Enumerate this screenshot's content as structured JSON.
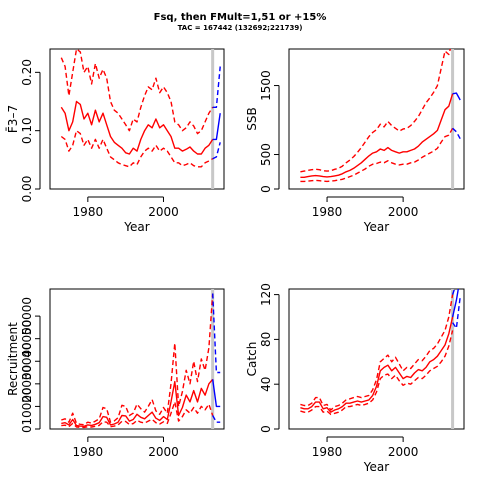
{
  "figure": {
    "title": "Fsq, then FMult=1,51 or +15%",
    "subtitle": "TAC = 167442 (132692;221739)"
  },
  "colors": {
    "historical": "#ff0000",
    "projection": "#0000ff",
    "terminal_line": "#c8c8c8"
  },
  "chart_data": [
    {
      "id": "fbar",
      "type": "line",
      "xlabel": "Year",
      "ylabel": "F̄3–7",
      "xlim": [
        1970,
        2016
      ],
      "ylim": [
        0.0,
        0.24
      ],
      "xticks": [
        1980,
        2000
      ],
      "yticks": [
        "0.00",
        "0.10",
        "0.20"
      ],
      "terminal_year": 2013,
      "series": {
        "hist_x": [
          1973,
          1974,
          1975,
          1976,
          1977,
          1978,
          1979,
          1980,
          1981,
          1982,
          1983,
          1984,
          1985,
          1986,
          1987,
          1988,
          1989,
          1990,
          1991,
          1992,
          1993,
          1994,
          1995,
          1996,
          1997,
          1998,
          1999,
          2000,
          2001,
          2002,
          2003,
          2004,
          2005,
          2006,
          2007,
          2008,
          2009,
          2010,
          2011,
          2012,
          2013
        ],
        "median": [
          0.14,
          0.13,
          0.1,
          0.115,
          0.15,
          0.145,
          0.12,
          0.13,
          0.11,
          0.135,
          0.115,
          0.13,
          0.11,
          0.09,
          0.08,
          0.075,
          0.07,
          0.062,
          0.06,
          0.07,
          0.065,
          0.085,
          0.1,
          0.11,
          0.105,
          0.12,
          0.105,
          0.11,
          0.1,
          0.09,
          0.07,
          0.07,
          0.065,
          0.068,
          0.072,
          0.065,
          0.06,
          0.06,
          0.07,
          0.075,
          0.085
        ],
        "upper": [
          0.225,
          0.21,
          0.16,
          0.2,
          0.24,
          0.235,
          0.2,
          0.21,
          0.18,
          0.215,
          0.19,
          0.205,
          0.19,
          0.15,
          0.135,
          0.13,
          0.12,
          0.11,
          0.1,
          0.12,
          0.115,
          0.14,
          0.16,
          0.175,
          0.17,
          0.19,
          0.165,
          0.175,
          0.165,
          0.15,
          0.115,
          0.11,
          0.1,
          0.105,
          0.115,
          0.108,
          0.095,
          0.1,
          0.115,
          0.13,
          0.14
        ],
        "lower": [
          0.09,
          0.085,
          0.065,
          0.075,
          0.1,
          0.095,
          0.075,
          0.085,
          0.07,
          0.085,
          0.07,
          0.085,
          0.07,
          0.055,
          0.05,
          0.045,
          0.042,
          0.04,
          0.038,
          0.045,
          0.042,
          0.055,
          0.065,
          0.07,
          0.065,
          0.075,
          0.065,
          0.07,
          0.065,
          0.055,
          0.045,
          0.045,
          0.04,
          0.042,
          0.045,
          0.04,
          0.038,
          0.038,
          0.045,
          0.048,
          0.052
        ],
        "proj_x": [
          2013,
          2014,
          2015
        ],
        "proj_median": [
          0.085,
          0.085,
          0.13
        ],
        "proj_upper": [
          0.14,
          0.14,
          0.21
        ],
        "proj_lower": [
          0.052,
          0.055,
          0.08
        ]
      }
    },
    {
      "id": "ssb",
      "type": "line",
      "xlabel": "Year",
      "ylabel": "SSB",
      "xlim": [
        1970,
        2016
      ],
      "ylim": [
        0,
        2030
      ],
      "xticks": [
        1980,
        2000
      ],
      "yticks": [
        "0",
        "500",
        "1500"
      ],
      "terminal_year": 2013,
      "series": {
        "hist_x": [
          1973,
          1974,
          1975,
          1976,
          1977,
          1978,
          1979,
          1980,
          1981,
          1982,
          1983,
          1984,
          1985,
          1986,
          1987,
          1988,
          1989,
          1990,
          1991,
          1992,
          1993,
          1994,
          1995,
          1996,
          1997,
          1998,
          1999,
          2000,
          2001,
          2002,
          2003,
          2004,
          2005,
          2006,
          2007,
          2008,
          2009,
          2010,
          2011,
          2012,
          2013
        ],
        "median": [
          170,
          170,
          180,
          190,
          195,
          190,
          180,
          175,
          180,
          190,
          200,
          220,
          250,
          270,
          300,
          340,
          380,
          430,
          480,
          520,
          540,
          580,
          560,
          600,
          560,
          540,
          520,
          540,
          540,
          560,
          580,
          620,
          680,
          720,
          760,
          800,
          850,
          1000,
          1150,
          1200,
          1380
        ],
        "upper": [
          250,
          260,
          270,
          280,
          285,
          280,
          265,
          260,
          265,
          285,
          300,
          330,
          380,
          420,
          470,
          530,
          600,
          680,
          760,
          820,
          860,
          940,
          900,
          980,
          920,
          880,
          840,
          870,
          880,
          920,
          980,
          1050,
          1150,
          1250,
          1320,
          1400,
          1500,
          1750,
          2000,
          1950,
          2150
        ],
        "lower": [
          110,
          110,
          115,
          120,
          125,
          120,
          115,
          110,
          115,
          120,
          130,
          140,
          160,
          180,
          200,
          230,
          260,
          290,
          330,
          360,
          370,
          390,
          380,
          410,
          380,
          360,
          350,
          360,
          360,
          380,
          390,
          420,
          460,
          490,
          520,
          550,
          590,
          680,
          760,
          780,
          880
        ],
        "proj_x": [
          2013,
          2014,
          2015
        ],
        "proj_median": [
          1380,
          1390,
          1290
        ],
        "proj_upper": [
          2150,
          2200,
          2040
        ],
        "proj_lower": [
          880,
          830,
          730
        ]
      }
    },
    {
      "id": "recruitment",
      "type": "line",
      "xlabel": "",
      "ylabel": "Recruitment",
      "xlim": [
        1970,
        2016
      ],
      "ylim": [
        0,
        62000
      ],
      "xticks": [
        1980,
        2000
      ],
      "yticks": [
        "0",
        "10000",
        "20000",
        "30000",
        "40000",
        "50000"
      ],
      "terminal_year": 2013,
      "series": {
        "hist_x": [
          1973,
          1974,
          1975,
          1976,
          1977,
          1978,
          1979,
          1980,
          1981,
          1982,
          1983,
          1984,
          1985,
          1986,
          1987,
          1988,
          1989,
          1990,
          1991,
          1992,
          1993,
          1994,
          1995,
          1996,
          1997,
          1998,
          1999,
          2000,
          2001,
          2002,
          2003,
          2004,
          2005,
          2006,
          2007,
          2008,
          2009,
          2010,
          2011,
          2012,
          2013
        ],
        "median": [
          2500,
          2800,
          1800,
          4200,
          1500,
          1300,
          1200,
          1800,
          1600,
          2100,
          2800,
          5500,
          5200,
          1800,
          2200,
          3000,
          6000,
          5800,
          3500,
          4200,
          6500,
          5200,
          4500,
          6000,
          7500,
          4800,
          3800,
          5500,
          4200,
          12000,
          21000,
          6000,
          9500,
          15000,
          12000,
          17000,
          12000,
          18000,
          15000,
          20000,
          22000
        ],
        "upper": [
          4000,
          4500,
          3000,
          7000,
          2500,
          2100,
          1900,
          3000,
          2600,
          3500,
          4500,
          9500,
          9000,
          3000,
          3600,
          5000,
          10500,
          10000,
          6000,
          7000,
          11000,
          9000,
          7500,
          10000,
          13000,
          8000,
          6500,
          9500,
          7000,
          20000,
          38000,
          10000,
          16500,
          26000,
          20000,
          30000,
          21000,
          31000,
          26000,
          36000,
          60000
        ],
        "lower": [
          1500,
          1700,
          1000,
          2500,
          900,
          800,
          700,
          1000,
          900,
          1200,
          1600,
          3200,
          3000,
          1000,
          1300,
          1800,
          3400,
          3300,
          2000,
          2400,
          3800,
          3000,
          2600,
          3500,
          4300,
          2800,
          2200,
          3200,
          2500,
          7000,
          12000,
          3500,
          5500,
          8500,
          7000,
          9500,
          7000,
          10000,
          8500,
          11000,
          6000
        ],
        "proj_x": [
          2013,
          2014,
          2015
        ],
        "proj_median": [
          22000,
          10000,
          10000
        ],
        "proj_upper": [
          60000,
          25000,
          25000
        ],
        "proj_lower": [
          6000,
          3000,
          3000
        ]
      }
    },
    {
      "id": "catch",
      "type": "line",
      "xlabel": "Year",
      "ylabel": "Catch",
      "xlim": [
        1970,
        2016
      ],
      "ylim": [
        0,
        125
      ],
      "xticks": [
        1980,
        2000
      ],
      "yticks": [
        "0",
        "40",
        "80",
        "120"
      ],
      "terminal_year": 2013,
      "series": {
        "hist_x": [
          1973,
          1974,
          1975,
          1976,
          1977,
          1978,
          1979,
          1980,
          1981,
          1982,
          1983,
          1984,
          1985,
          1986,
          1987,
          1988,
          1989,
          1990,
          1991,
          1992,
          1993,
          1994,
          1995,
          1996,
          1997,
          1998,
          1999,
          2000,
          2001,
          2002,
          2003,
          2004,
          2005,
          2006,
          2007,
          2008,
          2009,
          2010,
          2011,
          2012,
          2013
        ],
        "median": [
          19,
          18,
          18,
          20,
          24,
          24,
          18,
          19,
          15,
          17,
          18,
          20,
          23,
          23,
          24,
          25,
          24,
          25,
          26,
          30,
          38,
          52,
          55,
          57,
          52,
          55,
          50,
          45,
          47,
          46,
          50,
          53,
          52,
          55,
          60,
          62,
          65,
          70,
          75,
          85,
          100
        ],
        "upper": [
          22,
          21,
          21,
          23,
          28,
          28,
          21,
          22,
          17,
          20,
          21,
          23,
          26,
          27,
          28,
          29,
          28,
          29,
          30,
          35,
          44,
          60,
          63,
          66,
          60,
          64,
          58,
          52,
          55,
          54,
          58,
          62,
          61,
          65,
          70,
          72,
          76,
          82,
          88,
          100,
          120
        ],
        "lower": [
          16,
          15,
          15,
          17,
          20,
          20,
          15,
          16,
          13,
          14,
          15,
          17,
          20,
          20,
          21,
          22,
          21,
          22,
          23,
          26,
          33,
          45,
          48,
          49,
          45,
          48,
          43,
          39,
          41,
          40,
          43,
          46,
          45,
          48,
          52,
          54,
          56,
          60,
          65,
          74,
          88
        ],
        "proj_x": [
          2013,
          2014,
          2015
        ],
        "proj_median": [
          100,
          115,
          135
        ],
        "proj_upper": [
          120,
          130,
          150
        ],
        "proj_lower": [
          95,
          90,
          118
        ]
      }
    }
  ]
}
